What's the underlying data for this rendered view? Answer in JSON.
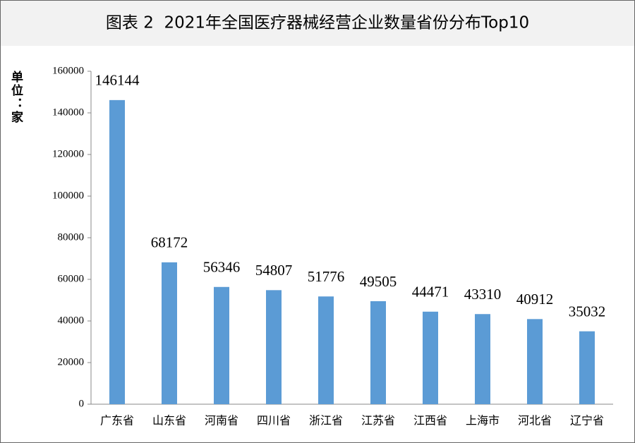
{
  "chart_data": {
    "type": "bar",
    "title": "图表 2  2021年全国医疗器械经营企业数量省份分布Top10",
    "y_label": "单位：家",
    "categories": [
      "广东省",
      "山东省",
      "河南省",
      "四川省",
      "浙江省",
      "江苏省",
      "江西省",
      "上海市",
      "河北省",
      "辽宁省"
    ],
    "values": [
      146144,
      68172,
      56346,
      54807,
      51776,
      49505,
      44471,
      43310,
      40912,
      35032
    ],
    "color": "#5b9bd5",
    "ylim": [
      0,
      160000
    ],
    "yticks": [
      0,
      20000,
      40000,
      60000,
      80000,
      100000,
      120000,
      140000,
      160000
    ],
    "grid": false
  }
}
